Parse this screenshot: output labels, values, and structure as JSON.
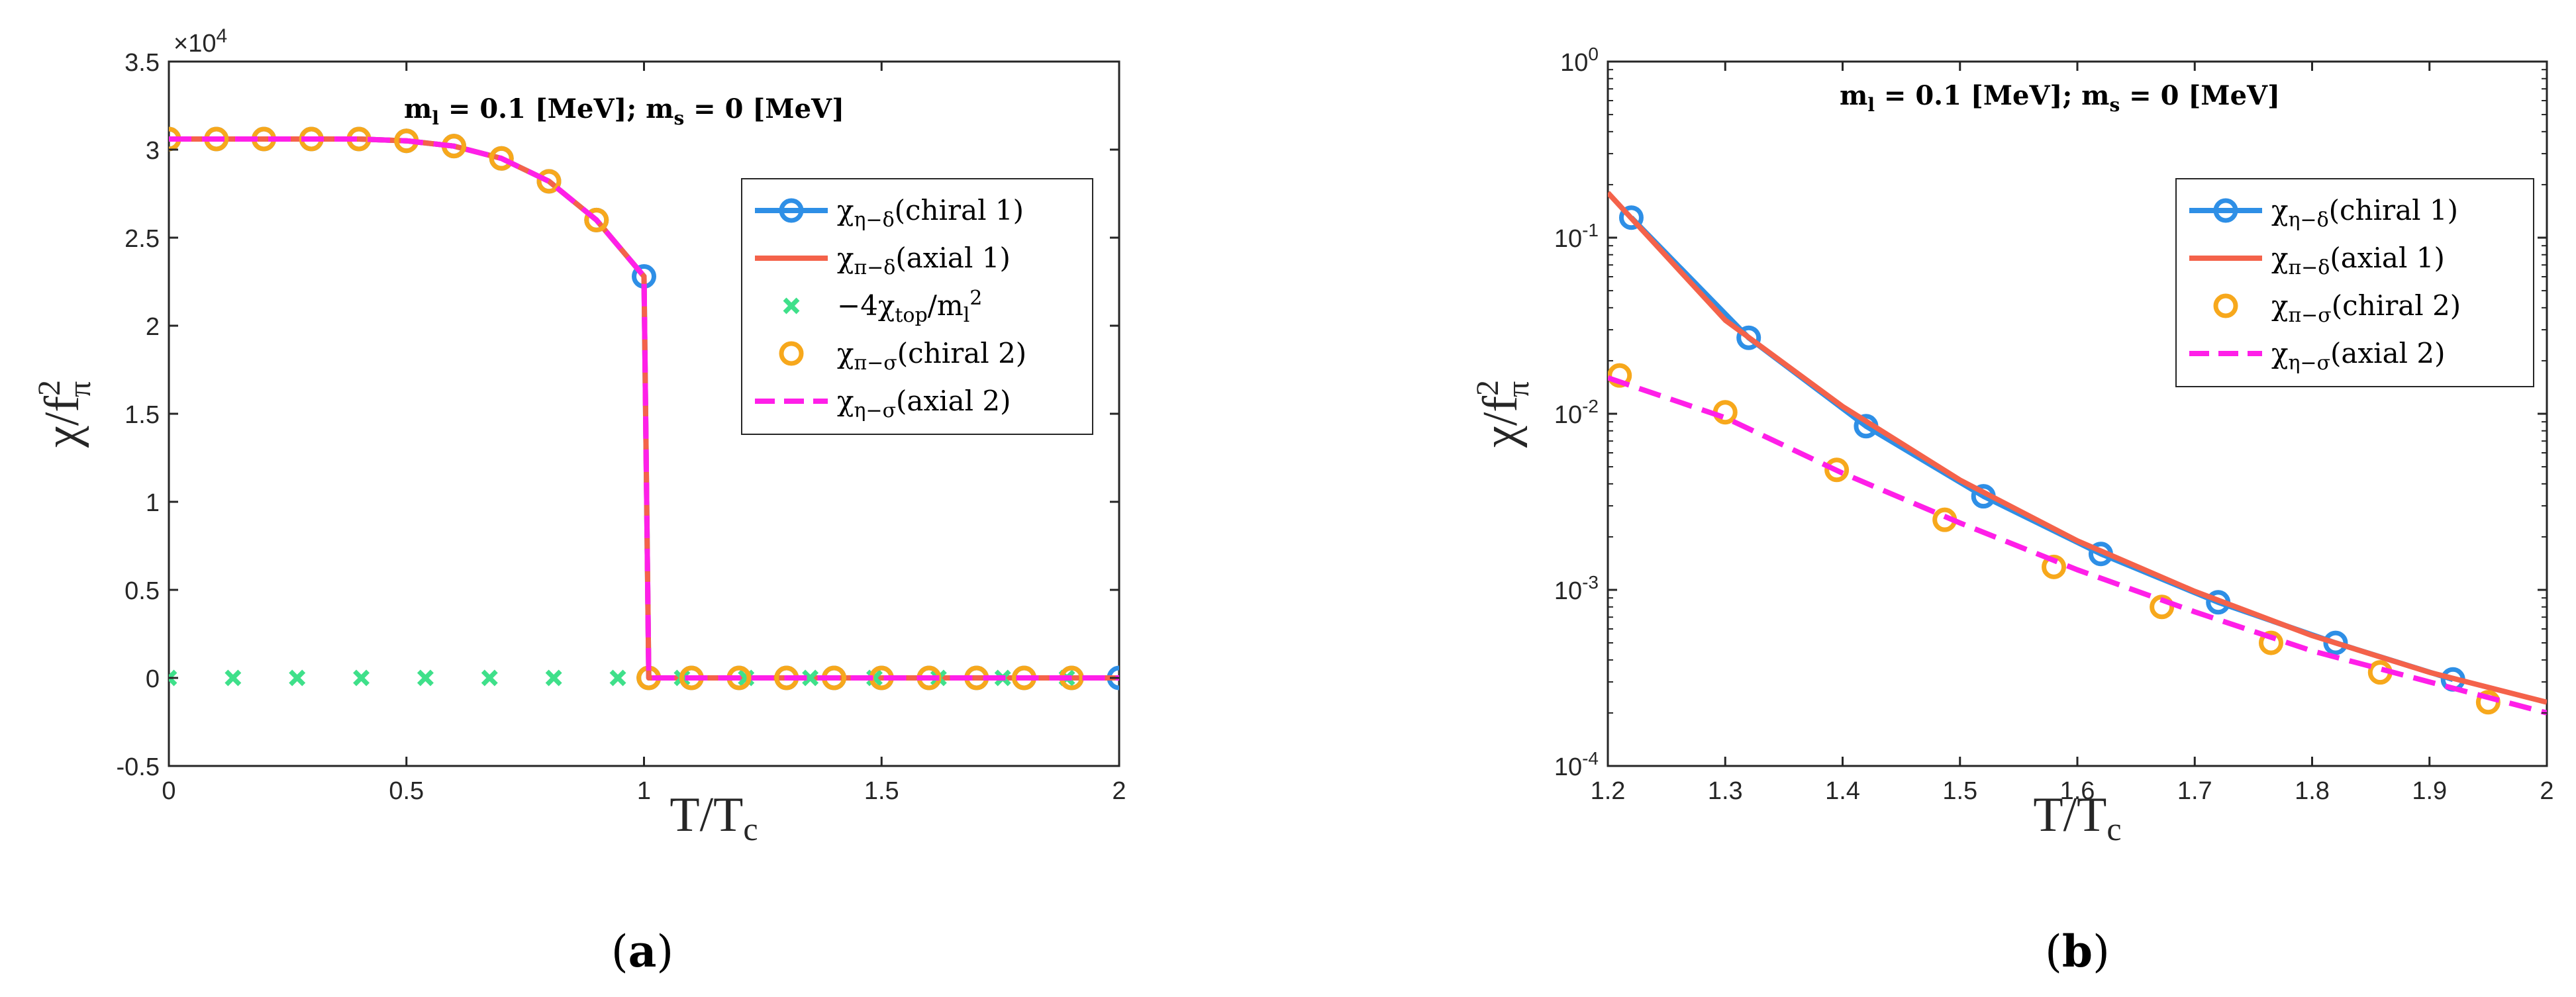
{
  "chart_data": [
    {
      "panel": "a",
      "type": "line",
      "title": "",
      "annotation": "m_l = 0.1 [MeV]; m_s = 0 [MeV]",
      "xlabel": "T/T_c",
      "ylabel": "χ/f_π^2",
      "exponent_label": "×10^4",
      "xlim": [
        0,
        2
      ],
      "ylim": [
        -0.5,
        3.5
      ],
      "xticks": [
        "0",
        "0.5",
        "1",
        "1.5",
        "2"
      ],
      "yticks": [
        "-0.5",
        "0",
        "0.5",
        "1",
        "1.5",
        "2",
        "2.5",
        "3",
        "3.5"
      ],
      "legend_position": "top-right",
      "series": [
        {
          "name": "χ_{η−δ}(chiral 1)",
          "style": "line+circle",
          "color": "#2e8fe6",
          "x": [
            0,
            0.1,
            0.2,
            0.3,
            0.4,
            0.5,
            0.6,
            0.7,
            0.8,
            0.9,
            1.0,
            1.01,
            1.1,
            1.2,
            1.3,
            1.4,
            1.5,
            1.6,
            1.7,
            1.8,
            1.9,
            2.0
          ],
          "y": [
            3.06,
            3.06,
            3.06,
            3.06,
            3.06,
            3.05,
            3.02,
            2.95,
            2.82,
            2.6,
            2.28,
            0.0,
            0,
            0,
            0,
            0,
            0,
            0,
            0,
            0,
            0,
            0
          ]
        },
        {
          "name": "χ_{π−δ}(axial 1)",
          "style": "line",
          "color": "#f4624a",
          "x": [
            0,
            0.1,
            0.2,
            0.3,
            0.4,
            0.5,
            0.6,
            0.7,
            0.8,
            0.9,
            1.0,
            1.01,
            1.1,
            1.2,
            1.3,
            1.4,
            1.5,
            1.6,
            1.7,
            1.8,
            1.9,
            2.0
          ],
          "y": [
            3.06,
            3.06,
            3.06,
            3.06,
            3.06,
            3.05,
            3.02,
            2.95,
            2.82,
            2.6,
            2.28,
            0.0,
            0,
            0,
            0,
            0,
            0,
            0,
            0,
            0,
            0,
            0
          ]
        },
        {
          "name": "−4χ_{top}/m_l^2",
          "style": "cross",
          "color": "#3fe08a",
          "x": [
            0.0,
            0.135,
            0.27,
            0.405,
            0.54,
            0.675,
            0.81,
            0.945,
            1.08,
            1.215,
            1.35,
            1.485,
            1.62,
            1.755,
            1.89
          ],
          "y": [
            0,
            0,
            0,
            0,
            0,
            0,
            0,
            0,
            0,
            0,
            0,
            0,
            0,
            0,
            0
          ]
        },
        {
          "name": "χ_{π−σ}(chiral 2)",
          "style": "circle",
          "color": "#f7a81c",
          "x": [
            0,
            0.1,
            0.2,
            0.3,
            0.4,
            0.5,
            0.6,
            0.7,
            0.8,
            0.9,
            1.01,
            1.1,
            1.2,
            1.3,
            1.4,
            1.5,
            1.6,
            1.7,
            1.8,
            1.9
          ],
          "y": [
            3.06,
            3.06,
            3.06,
            3.06,
            3.06,
            3.05,
            3.02,
            2.95,
            2.82,
            2.6,
            0,
            0,
            0,
            0,
            0,
            0,
            0,
            0,
            0,
            0
          ]
        },
        {
          "name": "χ_{η−σ}(axial 2)",
          "style": "dashed",
          "color": "#ff1fe8",
          "x": [
            0,
            0.1,
            0.2,
            0.3,
            0.4,
            0.5,
            0.6,
            0.7,
            0.8,
            0.9,
            1.0,
            1.01,
            1.1,
            1.2,
            1.3,
            1.4,
            1.5,
            1.6,
            1.7,
            1.8,
            1.9,
            2.0
          ],
          "y": [
            3.06,
            3.06,
            3.06,
            3.06,
            3.06,
            3.05,
            3.02,
            2.95,
            2.82,
            2.6,
            2.28,
            0.0,
            0,
            0,
            0,
            0,
            0,
            0,
            0,
            0,
            0,
            0
          ]
        }
      ]
    },
    {
      "panel": "b",
      "type": "line",
      "yscale": "log",
      "title": "",
      "annotation": "m_l = 0.1 [MeV]; m_s = 0 [MeV]",
      "xlabel": "T/T_c",
      "ylabel": "χ/f_π^2",
      "xlim": [
        1.2,
        2
      ],
      "ylim": [
        0.0001,
        1
      ],
      "xticks": [
        "1.2",
        "1.3",
        "1.4",
        "1.5",
        "1.6",
        "1.7",
        "1.8",
        "1.9",
        "2"
      ],
      "yticks": [
        "10^-4",
        "10^-3",
        "10^-2",
        "10^-1",
        "10^0"
      ],
      "legend_position": "top-right",
      "series": [
        {
          "name": "χ_{η−δ}(chiral 1)",
          "style": "line+circle",
          "color": "#2e8fe6",
          "x": [
            1.22,
            1.32,
            1.42,
            1.52,
            1.62,
            1.72,
            1.82,
            1.92
          ],
          "y": [
            0.13,
            0.027,
            0.0085,
            0.0034,
            0.0016,
            0.00085,
            0.0005,
            0.00031
          ]
        },
        {
          "name": "χ_{π−δ}(axial 1)",
          "style": "line",
          "color": "#f4624a",
          "x": [
            1.2,
            1.3,
            1.4,
            1.5,
            1.6,
            1.7,
            1.8,
            1.9,
            2.0
          ],
          "y": [
            0.18,
            0.034,
            0.011,
            0.0042,
            0.0019,
            0.00098,
            0.00055,
            0.00034,
            0.00023
          ]
        },
        {
          "name": "χ_{π−σ}(chiral 2)",
          "style": "circle",
          "color": "#f7a81c",
          "x": [
            1.21,
            1.3,
            1.395,
            1.487,
            1.58,
            1.672,
            1.765,
            1.858,
            1.95
          ],
          "y": [
            0.0165,
            0.0102,
            0.0048,
            0.0025,
            0.00135,
            0.0008,
            0.0005,
            0.00034,
            0.00023
          ]
        },
        {
          "name": "χ_{η−σ}(axial 2)",
          "style": "dashed",
          "color": "#ff1fe8",
          "x": [
            1.2,
            1.3,
            1.4,
            1.5,
            1.6,
            1.7,
            1.8,
            1.9,
            2.0
          ],
          "y": [
            0.016,
            0.0095,
            0.0046,
            0.0024,
            0.0013,
            0.00075,
            0.00045,
            0.0003,
            0.0002
          ]
        }
      ]
    }
  ],
  "panels": {
    "a": "a",
    "b": "b"
  }
}
